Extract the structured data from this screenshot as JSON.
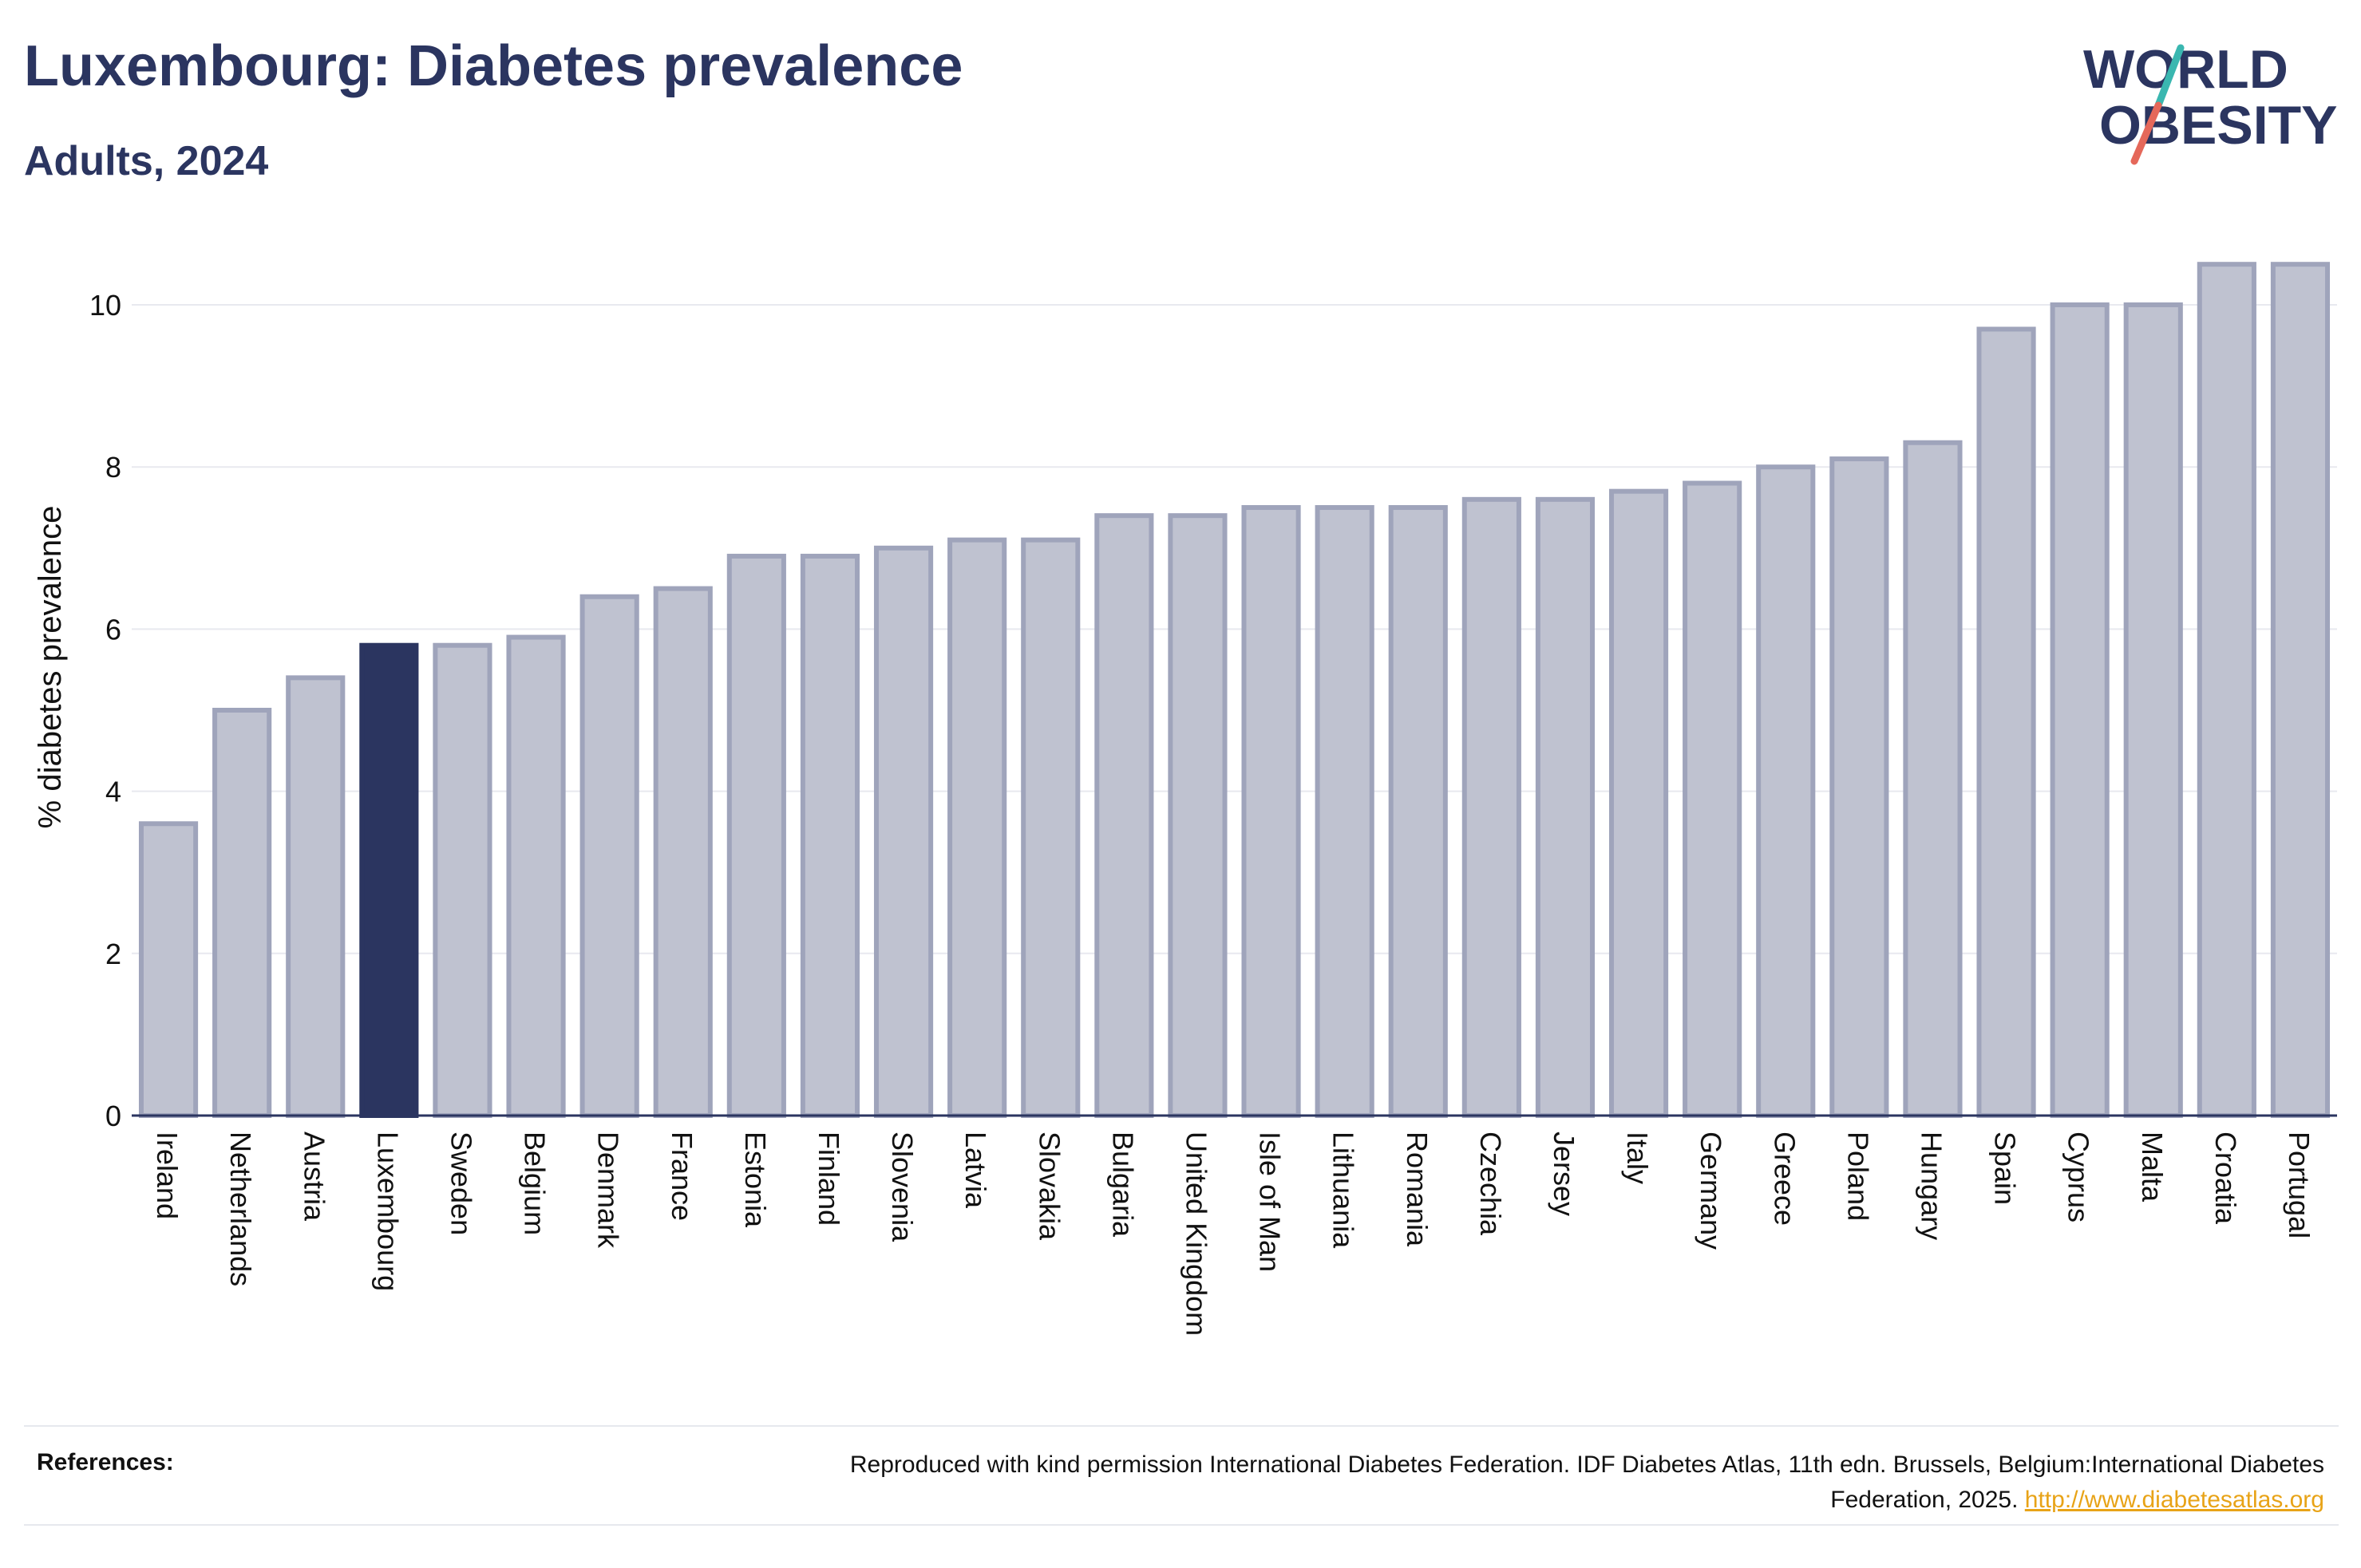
{
  "title": "Luxembourg: Diabetes prevalence",
  "subtitle": "Adults, 2024",
  "logo": {
    "line1": "WORLD",
    "line2": "OBESITY"
  },
  "references": {
    "label": "References:",
    "text": "Reproduced with kind permission International Diabetes Federation. IDF Diabetes Atlas, 11th edn. Brussels, Belgium:International Diabetes Federation, 2025.",
    "link": "http://www.diabetesatlas.org"
  },
  "colors": {
    "highlight": "#2b3560",
    "bar_fill": "#bfc2d0",
    "bar_stroke": "#9fa4bb",
    "text": "#2b3560",
    "link": "#e8a317"
  },
  "chart_data": {
    "type": "bar",
    "ylabel": "% diabetes prevalence",
    "xlabel": "",
    "ylim": [
      0,
      11
    ],
    "yticks": [
      0,
      2,
      4,
      6,
      8,
      10
    ],
    "grid": true,
    "highlight": "Luxembourg",
    "categories": [
      "Ireland",
      "Netherlands",
      "Austria",
      "Luxembourg",
      "Sweden",
      "Belgium",
      "Denmark",
      "France",
      "Estonia",
      "Finland",
      "Slovenia",
      "Latvia",
      "Slovakia",
      "Bulgaria",
      "United Kingdom",
      "Isle of Man",
      "Lithuania",
      "Romania",
      "Czechia",
      "Jersey",
      "Italy",
      "Germany",
      "Greece",
      "Poland",
      "Hungary",
      "Spain",
      "Cyprus",
      "Malta",
      "Croatia",
      "Portugal"
    ],
    "values": [
      3.6,
      5.0,
      5.4,
      5.8,
      5.8,
      5.9,
      6.4,
      6.5,
      6.9,
      6.9,
      7.0,
      7.1,
      7.1,
      7.4,
      7.4,
      7.5,
      7.5,
      7.5,
      7.6,
      7.6,
      7.7,
      7.8,
      8.0,
      8.1,
      8.3,
      9.7,
      10.0,
      10.0,
      10.5,
      10.5
    ]
  }
}
